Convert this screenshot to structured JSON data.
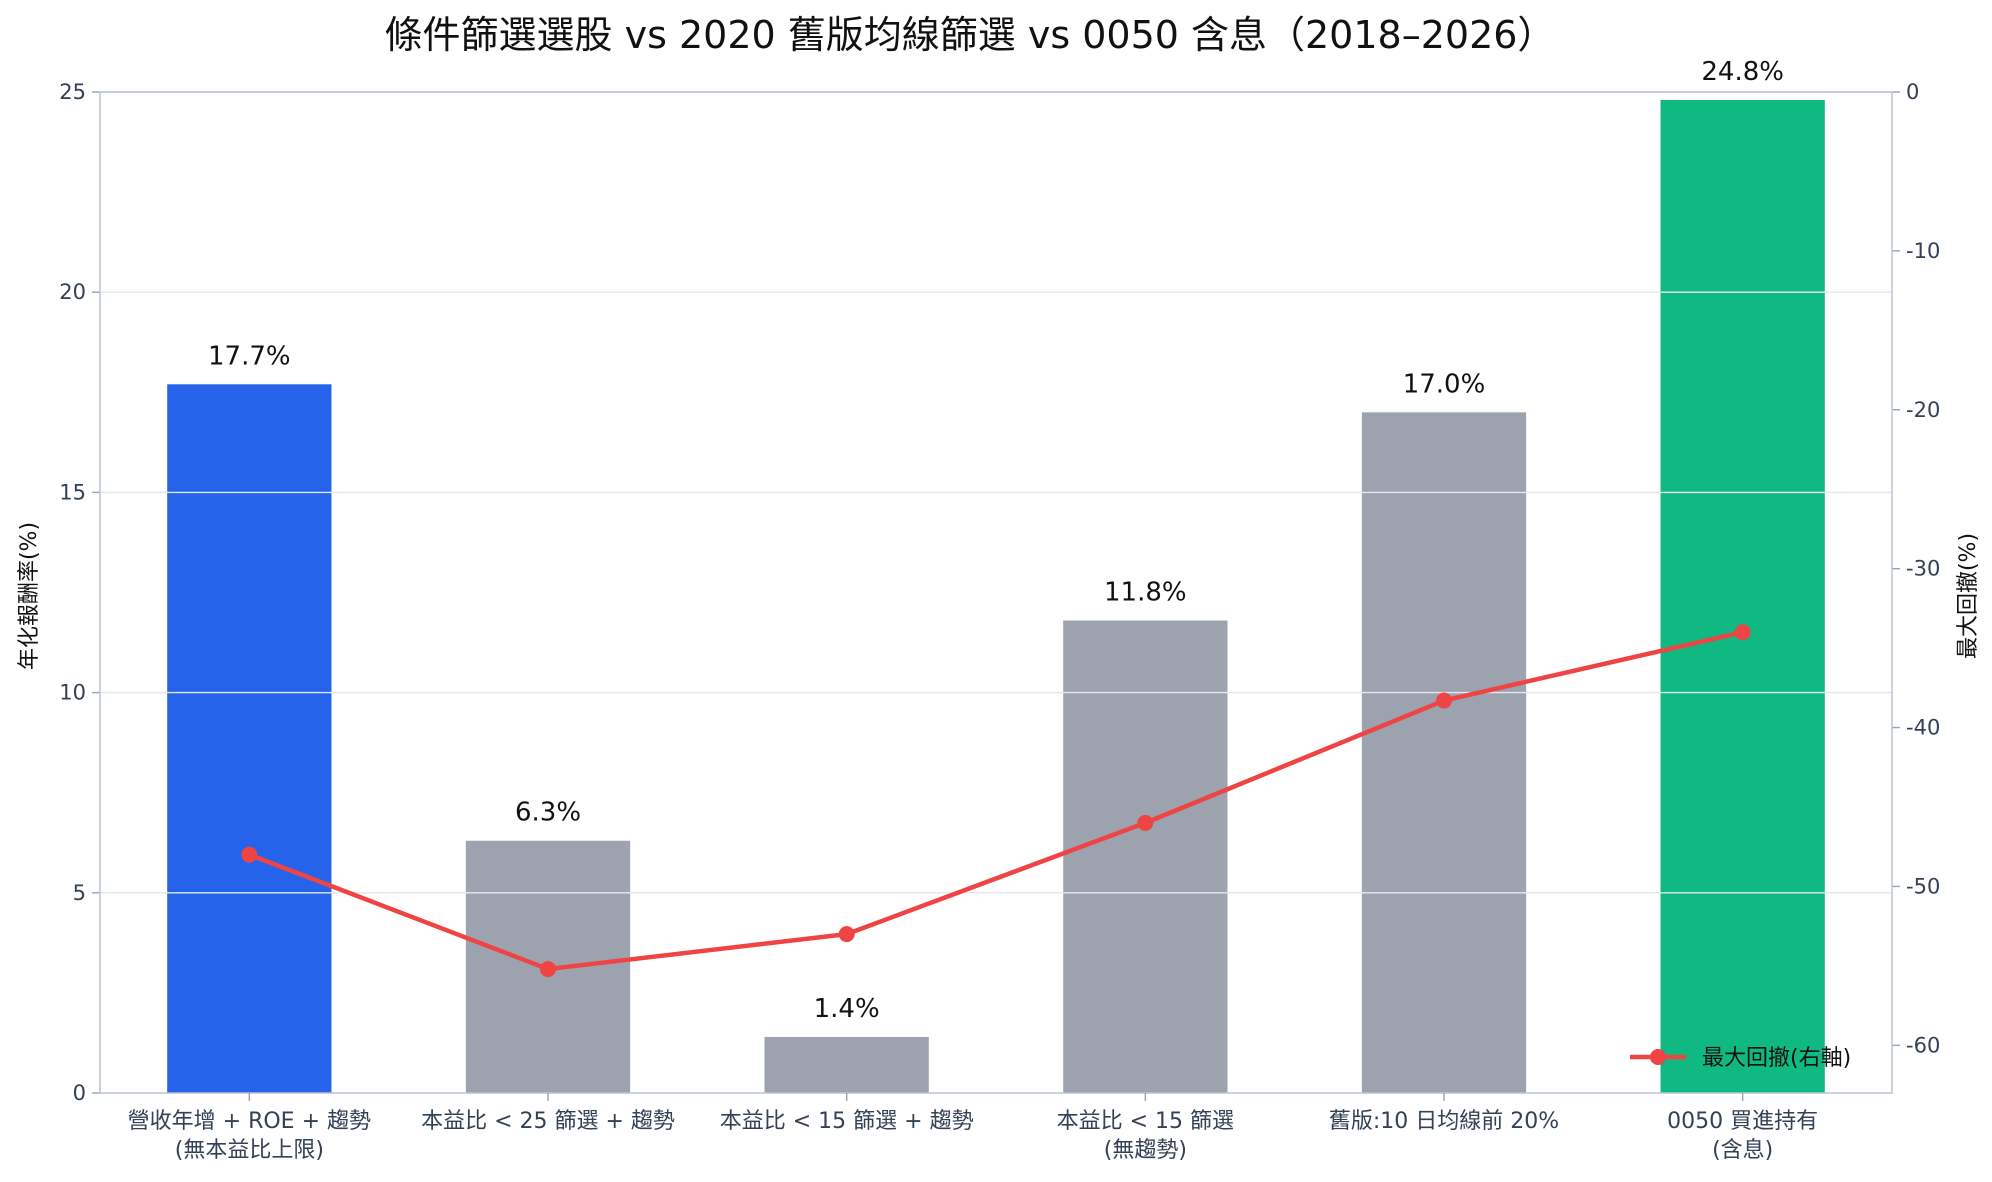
{
  "chart_data": {
    "type": "bar",
    "title": "條件篩選選股 vs 2020 舊版均線篩選 vs 0050 含息（2018–2026）",
    "categories": [
      [
        "營收年增 + ROE + 趨勢",
        "(無本益比上限)"
      ],
      [
        "本益比 < 25 篩選 + 趨勢"
      ],
      [
        "本益比 < 15 篩選 + 趨勢"
      ],
      [
        "本益比 < 15 篩選",
        "(無趨勢)"
      ],
      [
        "舊版:10 日均線前 20%"
      ],
      [
        "0050 買進持有",
        "(含息)"
      ]
    ],
    "ylabel": "年化報酬率(%)",
    "y2label": "最大回撤(%)",
    "ylim": [
      0,
      25
    ],
    "yticks": [
      0,
      5,
      10,
      15,
      20,
      25
    ],
    "y2lim": [
      0,
      -63
    ],
    "y2ticks": [
      0,
      -10,
      -20,
      -30,
      -40,
      -50,
      -60
    ],
    "series": [
      {
        "kind": "bar",
        "axis": "left",
        "values": [
          17.7,
          6.3,
          1.4,
          11.8,
          17.0,
          24.8
        ],
        "labels": [
          "17.7%",
          "6.3%",
          "1.4%",
          "11.8%",
          "17.0%",
          "24.8%"
        ],
        "colors": [
          "#2563eb",
          "#9ca3af",
          "#9ca3af",
          "#9ca3af",
          "#9ca3af",
          "#10b981"
        ]
      },
      {
        "kind": "line",
        "axis": "right",
        "name": "最大回撤(右軸)",
        "values": [
          -48,
          -55.2,
          -53,
          -46,
          -38.3,
          -34
        ],
        "color": "#ef4444"
      }
    ],
    "grid": true,
    "legend": "bottom-right"
  }
}
